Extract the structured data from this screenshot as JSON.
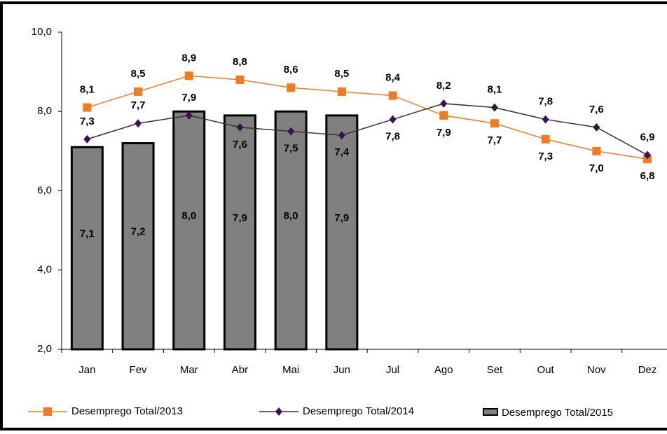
{
  "chart_data": {
    "type": "bar",
    "categories": [
      "Jan",
      "Fev",
      "Mar",
      "Abr",
      "Mai",
      "Jun",
      "Jul",
      "Ago",
      "Set",
      "Out",
      "Nov",
      "Dez"
    ],
    "series": [
      {
        "name": "Desemprego Total/2013",
        "type": "line",
        "color": "#f47a20",
        "values": [
          8.1,
          8.5,
          8.9,
          8.8,
          8.6,
          8.5,
          8.4,
          7.9,
          7.7,
          7.3,
          7.0,
          6.8
        ],
        "value_labels": [
          "8,1",
          "8,5",
          "8,9",
          "8,8",
          "8,6",
          "8,5",
          "8,4",
          "7,9",
          "7,7",
          "7,3",
          "7,0",
          "6,8"
        ]
      },
      {
        "name": "Desemprego Total/2014",
        "type": "line",
        "color": "#3b1050",
        "values": [
          7.3,
          7.7,
          7.9,
          7.6,
          7.5,
          7.4,
          7.8,
          8.2,
          8.1,
          7.8,
          7.6,
          6.9
        ],
        "value_labels": [
          "7,3",
          "7,7",
          "7,9",
          "7,6",
          "7,5",
          "7,4",
          "7,8",
          "8,2",
          "8,1",
          "7,8",
          "7,6",
          "6,9"
        ]
      },
      {
        "name": "Desemprego Total/2015",
        "type": "bar",
        "color": "#808080",
        "values": [
          7.1,
          7.2,
          8.0,
          7.9,
          8.0,
          7.9,
          null,
          null,
          null,
          null,
          null,
          null
        ],
        "value_labels": [
          "7,1",
          "7,2",
          "8,0",
          "7,9",
          "8,0",
          "7,9",
          null,
          null,
          null,
          null,
          null,
          null
        ]
      }
    ],
    "ylim": [
      2.0,
      10.0
    ],
    "yticks": [
      {
        "value": 2.0,
        "label": "2,0"
      },
      {
        "value": 4.0,
        "label": "4,0"
      },
      {
        "value": 6.0,
        "label": "6,0"
      },
      {
        "value": 8.0,
        "label": "8,0"
      },
      {
        "value": 10.0,
        "label": "10,0"
      }
    ],
    "grid": false,
    "legend": "bottom"
  }
}
